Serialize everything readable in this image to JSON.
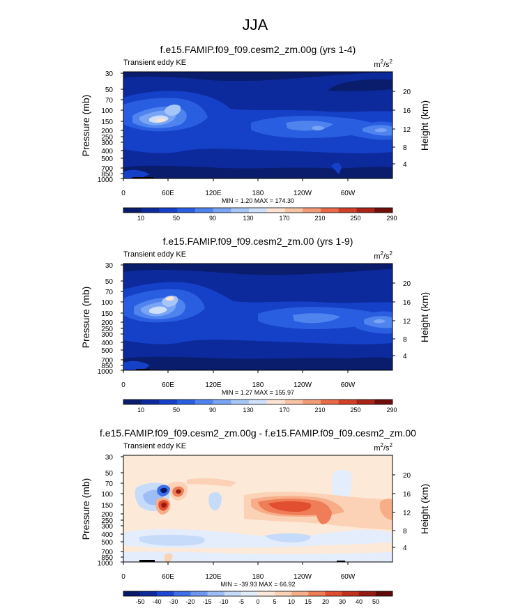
{
  "main_title": "JJA",
  "colors": {
    "seq": [
      "#0a1c6c",
      "#0d2a9c",
      "#1540c8",
      "#2a5ee0",
      "#4f84ef",
      "#7aa4f4",
      "#a7c6f8",
      "#cfe0fb",
      "#fbe3d3",
      "#f8c3a6",
      "#f29b77",
      "#e86a48",
      "#d0402a",
      "#a82318",
      "#6e0f0c"
    ],
    "div": [
      "#06186a",
      "#0d2a9c",
      "#1d46d4",
      "#3e6ee8",
      "#6e97f2",
      "#9dbdf6",
      "#c6dbfa",
      "#e3edfc",
      "#fde9d8",
      "#fbd2b6",
      "#f7ad88",
      "#ef7d57",
      "#e24e30",
      "#c2301e",
      "#951a12",
      "#600a08"
    ]
  },
  "chart_data": [
    {
      "type": "heatmap",
      "title": "f.e15.FAMIP.f09_f09.cesm2_zm.00g (yrs 1-4)",
      "field_label": "Transient eddy KE",
      "units_base": "m",
      "units_sup1": "2",
      "units_mid": "/s",
      "units_sup2": "2",
      "ylabel": "Pressure (mb)",
      "ylabel_right": "Height (km)",
      "x_ticks": [
        "0",
        "60E",
        "120E",
        "180",
        "120W",
        "60W"
      ],
      "y_ticks": [
        "30",
        "50",
        "70",
        "100",
        "150",
        "200",
        "250",
        "300",
        "400",
        "500",
        "700",
        "850",
        "1000"
      ],
      "y_right_ticks": [
        "20",
        "16",
        "12",
        "8",
        "4"
      ],
      "stats": "MIN =   1.20  MAX = 174.30",
      "colorbar_labels": [
        "10",
        "50",
        "90",
        "130",
        "170",
        "210",
        "250",
        "290"
      ],
      "max_value": 174.3,
      "min_value": 1.2
    },
    {
      "type": "heatmap",
      "title": "f.e15.FAMIP.f09_f09.cesm2_zm.00 (yrs 1-9)",
      "field_label": "Transient eddy KE",
      "units_base": "m",
      "units_sup1": "2",
      "units_mid": "/s",
      "units_sup2": "2",
      "ylabel": "Pressure (mb)",
      "ylabel_right": "Height (km)",
      "x_ticks": [
        "0",
        "60E",
        "120E",
        "180",
        "120W",
        "60W"
      ],
      "y_ticks": [
        "30",
        "50",
        "70",
        "100",
        "150",
        "200",
        "250",
        "300",
        "400",
        "500",
        "700",
        "850",
        "1000"
      ],
      "y_right_ticks": [
        "20",
        "16",
        "12",
        "8",
        "4"
      ],
      "stats": "MIN =   1.27  MAX = 155.97",
      "colorbar_labels": [
        "10",
        "50",
        "90",
        "130",
        "170",
        "210",
        "250",
        "290"
      ],
      "max_value": 155.97,
      "min_value": 1.27
    },
    {
      "type": "heatmap",
      "title": "f.e15.FAMIP.f09_f09.cesm2_zm.00g - f.e15.FAMIP.f09_f09.cesm2_zm.00",
      "field_label": "Transient eddy KE",
      "units_base": "m",
      "units_sup1": "2",
      "units_mid": "/s",
      "units_sup2": "2",
      "ylabel": "Pressure (mb)",
      "ylabel_right": "Height (km)",
      "x_ticks": [
        "0",
        "60E",
        "120E",
        "180",
        "120W",
        "60W"
      ],
      "y_ticks": [
        "30",
        "50",
        "70",
        "100",
        "150",
        "200",
        "250",
        "300",
        "400",
        "500",
        "700",
        "850",
        "1000"
      ],
      "y_right_ticks": [
        "20",
        "16",
        "12",
        "8",
        "4"
      ],
      "stats": "MIN = -39.93  MAX =  66.92",
      "colorbar_labels": [
        "-50",
        "-40",
        "-30",
        "-20",
        "-15",
        "-10",
        "-5",
        "0",
        "5",
        "10",
        "15",
        "20",
        "30",
        "40",
        "50"
      ],
      "max_value": 66.92,
      "min_value": -39.93
    }
  ]
}
